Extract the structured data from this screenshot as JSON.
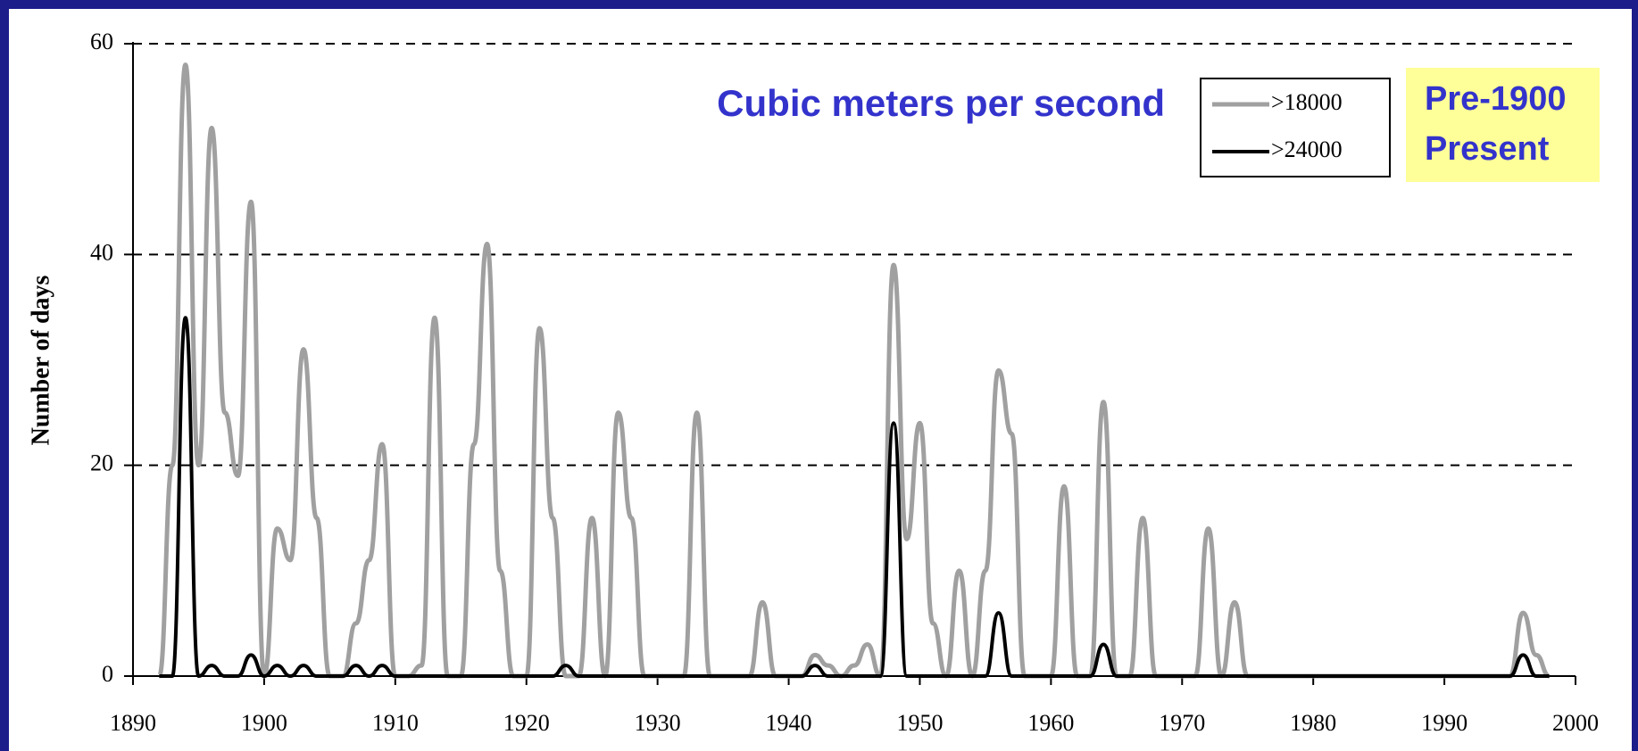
{
  "chart_data": {
    "type": "line",
    "y_label": "Number of days",
    "annotations": [
      "Cubic meters per second",
      "Pre-1900",
      "Present"
    ],
    "x": [
      1892,
      1893,
      1894,
      1895,
      1896,
      1897,
      1898,
      1899,
      1900,
      1901,
      1902,
      1903,
      1904,
      1905,
      1906,
      1907,
      1908,
      1909,
      1910,
      1911,
      1912,
      1913,
      1914,
      1915,
      1916,
      1917,
      1918,
      1919,
      1920,
      1921,
      1922,
      1923,
      1924,
      1925,
      1926,
      1927,
      1928,
      1929,
      1930,
      1931,
      1932,
      1933,
      1934,
      1935,
      1936,
      1937,
      1938,
      1939,
      1940,
      1941,
      1942,
      1943,
      1944,
      1945,
      1946,
      1947,
      1948,
      1949,
      1950,
      1951,
      1952,
      1953,
      1954,
      1955,
      1956,
      1957,
      1958,
      1959,
      1960,
      1961,
      1962,
      1963,
      1964,
      1965,
      1966,
      1967,
      1968,
      1969,
      1970,
      1971,
      1972,
      1973,
      1974,
      1975,
      1976,
      1977,
      1978,
      1979,
      1980,
      1981,
      1982,
      1983,
      1984,
      1985,
      1986,
      1987,
      1988,
      1989,
      1990,
      1991,
      1992,
      1993,
      1994,
      1995,
      1996,
      1997,
      1998
    ],
    "series": [
      {
        "name": ">18000",
        "color": "#a0a0a0",
        "values": [
          0,
          20,
          58,
          20,
          52,
          25,
          19,
          45,
          0,
          14,
          11,
          31,
          15,
          0,
          0,
          5,
          11,
          22,
          0,
          0,
          1,
          34,
          0,
          0,
          22,
          41,
          10,
          0,
          0,
          33,
          15,
          0,
          0,
          15,
          0,
          25,
          15,
          0,
          0,
          0,
          0,
          25,
          0,
          0,
          0,
          0,
          7,
          0,
          0,
          0,
          2,
          1,
          0,
          1,
          3,
          0,
          39,
          13,
          24,
          5,
          0,
          10,
          0,
          10,
          29,
          23,
          0,
          0,
          0,
          18,
          0,
          0,
          26,
          0,
          0,
          15,
          0,
          0,
          0,
          0,
          14,
          0,
          7,
          0,
          0,
          0,
          0,
          0,
          0,
          0,
          0,
          0,
          0,
          0,
          0,
          0,
          0,
          0,
          0,
          0,
          0,
          0,
          0,
          0,
          6,
          2,
          0
        ]
      },
      {
        "name": ">24000",
        "color": "#000000",
        "values": [
          0,
          0,
          34,
          0,
          1,
          0,
          0,
          2,
          0,
          1,
          0,
          1,
          0,
          0,
          0,
          1,
          0,
          1,
          0,
          0,
          0,
          0,
          0,
          0,
          0,
          0,
          0,
          0,
          0,
          0,
          0,
          1,
          0,
          0,
          0,
          0,
          0,
          0,
          0,
          0,
          0,
          0,
          0,
          0,
          0,
          0,
          0,
          0,
          0,
          0,
          1,
          0,
          0,
          0,
          0,
          0,
          24,
          0,
          0,
          0,
          0,
          0,
          0,
          0,
          6,
          0,
          0,
          0,
          0,
          0,
          0,
          0,
          3,
          0,
          0,
          0,
          0,
          0,
          0,
          0,
          0,
          0,
          0,
          0,
          0,
          0,
          0,
          0,
          0,
          0,
          0,
          0,
          0,
          0,
          0,
          0,
          0,
          0,
          0,
          0,
          0,
          0,
          0,
          0,
          2,
          0,
          0
        ]
      }
    ],
    "xlim": [
      1890,
      2000
    ],
    "xticks": [
      1890,
      1900,
      1910,
      1920,
      1930,
      1940,
      1950,
      1960,
      1970,
      1980,
      1990,
      2000
    ],
    "ylim": [
      0,
      60
    ],
    "yticks": [
      0,
      20,
      40,
      60
    ],
    "grid": true
  }
}
